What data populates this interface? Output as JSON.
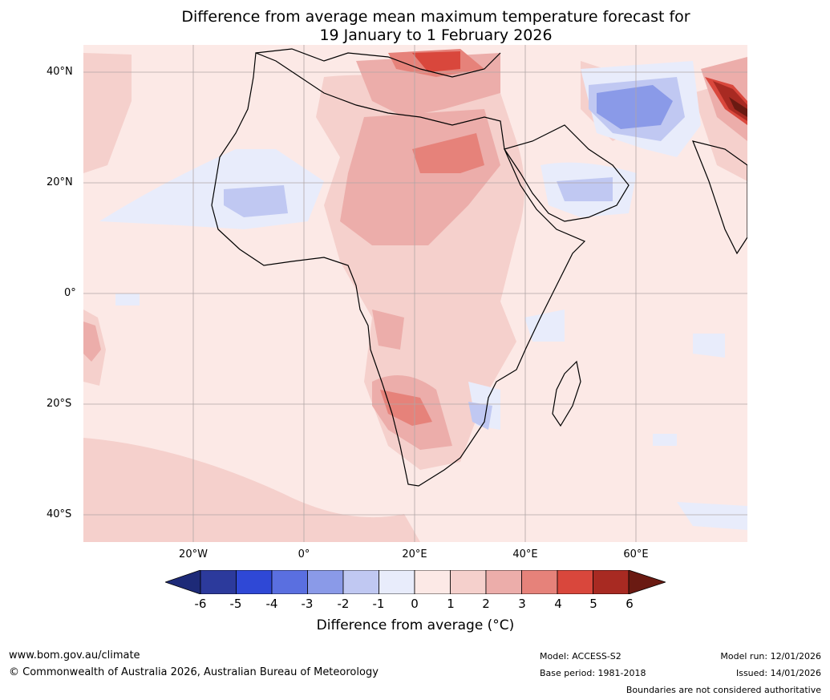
{
  "title": {
    "line1": "Difference from average mean maximum temperature forecast for",
    "line2": "19 January to 1 February 2026"
  },
  "axes": {
    "lat_labels": [
      "40°N",
      "20°N",
      "0°",
      "20°S",
      "40°S"
    ],
    "lon_labels": [
      "20°W",
      "0°",
      "20°E",
      "40°E",
      "60°E"
    ]
  },
  "colorbar": {
    "ticks": [
      "-6",
      "-5",
      "-4",
      "-3",
      "-2",
      "-1",
      "0",
      "1",
      "2",
      "3",
      "4",
      "5",
      "6"
    ],
    "colors": [
      "#2c3a9c",
      "#2f48d6",
      "#5a6fe0",
      "#8a9ae8",
      "#c0c8f2",
      "#e8ecfb",
      "#fce9e6",
      "#f5d0cc",
      "#ecadaa",
      "#e6827a",
      "#d9473c",
      "#a82a22"
    ],
    "low_extend_color": "#1d2a78",
    "high_extend_color": "#6a1a12",
    "label": "Difference from average (°C)"
  },
  "footer": {
    "website": "www.bom.gov.au/climate",
    "copyright": "© Commonwealth of Australia 2026, Australian Bureau of Meteorology",
    "model": "Model: ACCESS-S2",
    "base_period": "Base period: 1981-2018",
    "model_run": "Model run: 12/01/2026",
    "issued": "Issued: 14/01/2026",
    "disclaimer": "Boundaries are not considered authoritative"
  }
}
